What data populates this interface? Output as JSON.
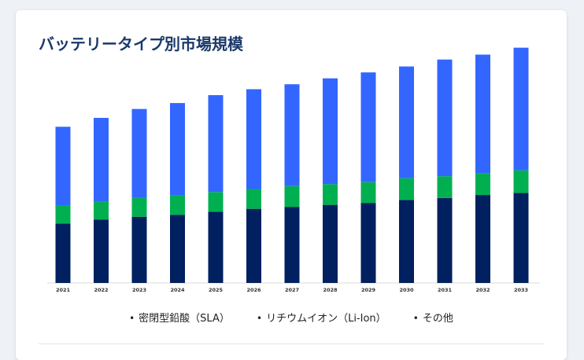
{
  "card": {
    "title": "バッテリータイプ別市場規模"
  },
  "chart_data": {
    "type": "bar",
    "stacked": true,
    "categories": [
      "2021",
      "2022",
      "2023",
      "2024",
      "2025",
      "2026",
      "2027",
      "2028",
      "2029",
      "2030",
      "2031",
      "2032",
      "2033"
    ],
    "series": [
      {
        "name": "密閉型鉛酸（SLA）",
        "color": "#002060",
        "values": [
          60,
          64,
          67,
          69,
          72,
          75,
          77,
          79,
          81,
          84,
          86,
          89,
          91
        ]
      },
      {
        "name": "リチウムイオン（Li-Ion）",
        "color": "#00b050",
        "values": [
          18,
          18,
          19,
          20,
          20,
          20,
          21,
          21,
          21,
          22,
          22,
          22,
          23
        ]
      },
      {
        "name": "その他",
        "color": "#3366ff",
        "values": [
          80,
          85,
          90,
          93,
          98,
          101,
          103,
          107,
          111,
          113,
          118,
          120,
          124
        ]
      }
    ],
    "ylim": [
      0,
      260
    ],
    "grid": false,
    "legend": "bottom",
    "xlabel": "",
    "ylabel": ""
  }
}
